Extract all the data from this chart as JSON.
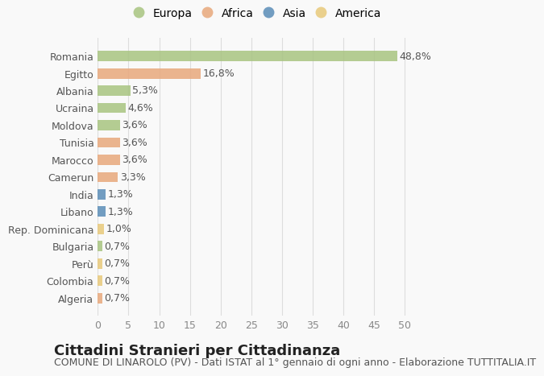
{
  "countries": [
    "Romania",
    "Egitto",
    "Albania",
    "Ucraina",
    "Moldova",
    "Tunisia",
    "Marocco",
    "Camerun",
    "India",
    "Libano",
    "Rep. Dominicana",
    "Bulgaria",
    "Perù",
    "Colombia",
    "Algeria"
  ],
  "values": [
    48.8,
    16.8,
    5.3,
    4.6,
    3.6,
    3.6,
    3.6,
    3.3,
    1.3,
    1.3,
    1.0,
    0.7,
    0.7,
    0.7,
    0.7
  ],
  "labels": [
    "48,8%",
    "16,8%",
    "5,3%",
    "4,6%",
    "3,6%",
    "3,6%",
    "3,6%",
    "3,3%",
    "1,3%",
    "1,3%",
    "1,0%",
    "0,7%",
    "0,7%",
    "0,7%",
    "0,7%"
  ],
  "continents": [
    "Europa",
    "Africa",
    "Europa",
    "Europa",
    "Europa",
    "Africa",
    "Africa",
    "Africa",
    "Asia",
    "Asia",
    "America",
    "Europa",
    "America",
    "America",
    "Africa"
  ],
  "continent_colors": {
    "Europa": "#a8c480",
    "Africa": "#e8a87c",
    "Asia": "#5b8db8",
    "America": "#e8c97a"
  },
  "legend_order": [
    "Europa",
    "Africa",
    "Asia",
    "America"
  ],
  "xlim": [
    0,
    52
  ],
  "xticks": [
    0,
    5,
    10,
    15,
    20,
    25,
    30,
    35,
    40,
    45,
    50
  ],
  "title": "Cittadini Stranieri per Cittadinanza",
  "subtitle": "COMUNE DI LINAROLO (PV) - Dati ISTAT al 1° gennaio di ogni anno - Elaborazione TUTTITALIA.IT",
  "background_color": "#f9f9f9",
  "bar_alpha": 0.85,
  "grid_color": "#dddddd",
  "title_fontsize": 13,
  "subtitle_fontsize": 9,
  "label_fontsize": 9,
  "tick_fontsize": 9
}
